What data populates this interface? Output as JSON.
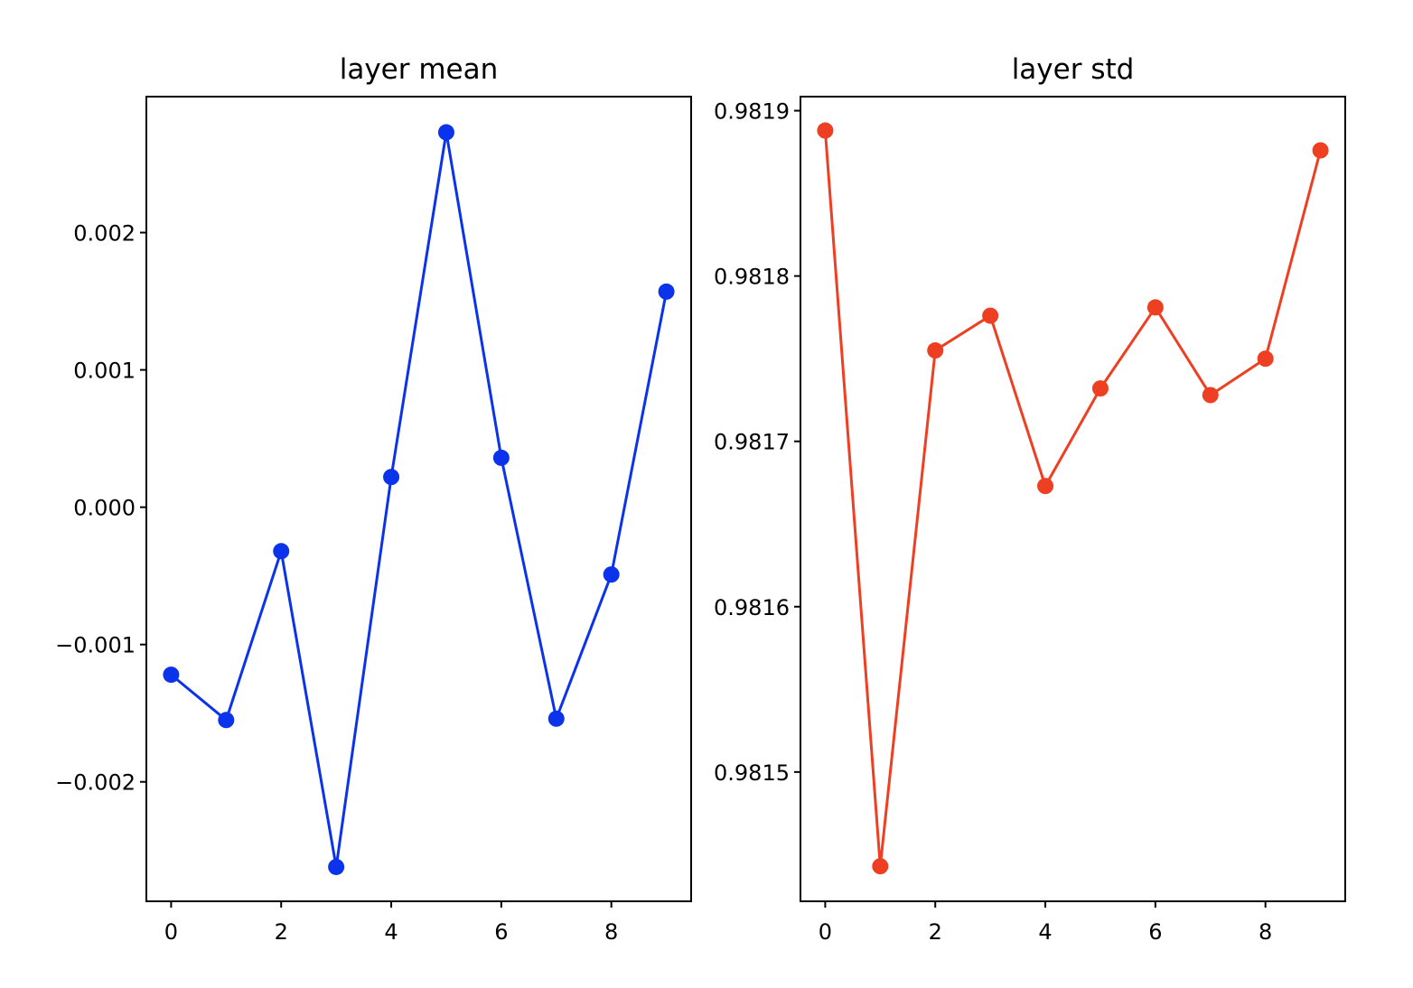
{
  "chart_data": [
    {
      "type": "line",
      "title": "layer mean",
      "xlabel": "",
      "ylabel": "",
      "x": [
        0,
        1,
        2,
        3,
        4,
        5,
        6,
        7,
        8,
        9
      ],
      "series": [
        {
          "values": [
            -0.00122,
            -0.00155,
            -0.00032,
            -0.00262,
            0.00022,
            0.00273,
            0.00036,
            -0.00154,
            -0.00049,
            0.00157
          ]
        }
      ],
      "xticks": [
        "0",
        "2",
        "4",
        "6",
        "8"
      ],
      "yticks": [
        "−0.002",
        "−0.001",
        "0.000",
        "0.001",
        "0.002"
      ],
      "xlim": [
        -0.45,
        9.45
      ],
      "ylim": [
        -0.00287,
        0.00299
      ],
      "grid": false,
      "color": "#0a33eb"
    },
    {
      "type": "line",
      "title": "layer std",
      "xlabel": "",
      "ylabel": "",
      "x": [
        0,
        1,
        2,
        3,
        4,
        5,
        6,
        7,
        8,
        9
      ],
      "series": [
        {
          "values": [
            0.981888,
            0.981443,
            0.981755,
            0.981776,
            0.981673,
            0.981732,
            0.981781,
            0.981728,
            0.98175,
            0.981876
          ]
        }
      ],
      "xticks": [
        "0",
        "2",
        "4",
        "6",
        "8"
      ],
      "yticks": [
        "0.9815",
        "0.9816",
        "0.9817",
        "0.9818",
        "0.9819"
      ],
      "xlim": [
        -0.45,
        9.45
      ],
      "ylim": [
        0.9814218,
        0.9819085
      ],
      "grid": false,
      "color": "#ee3f22"
    }
  ]
}
